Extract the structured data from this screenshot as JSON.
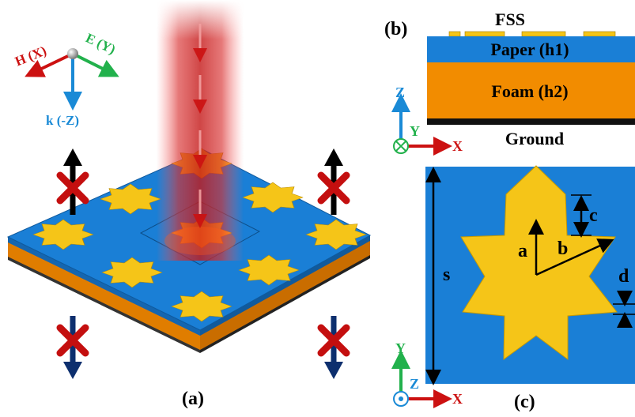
{
  "panel_a": {
    "label": "(a)",
    "axis_h": "H (X)",
    "axis_e": "E (Y)",
    "axis_k": "k (-Z)"
  },
  "panel_b": {
    "label": "(b)",
    "fss": "FSS",
    "paper": "Paper (h1)",
    "foam": "Foam (h2)",
    "ground": "Ground",
    "axis_z": "Z",
    "axis_y": "Y",
    "axis_x": "X"
  },
  "panel_c": {
    "label": "(c)",
    "dim_a": "a",
    "dim_b": "b",
    "dim_c": "c",
    "dim_d": "d",
    "dim_s": "s",
    "axis_y": "Y",
    "axis_z": "Z",
    "axis_x": "X"
  },
  "colors": {
    "substrate_blue": "#1a7fd6",
    "foam_orange": "#f28c00",
    "star_yellow": "#f5c518",
    "ground_black": "#111111",
    "arrow_red": "#cc1111",
    "axis_green": "#22b14c",
    "axis_blue": "#1a8ad6"
  }
}
